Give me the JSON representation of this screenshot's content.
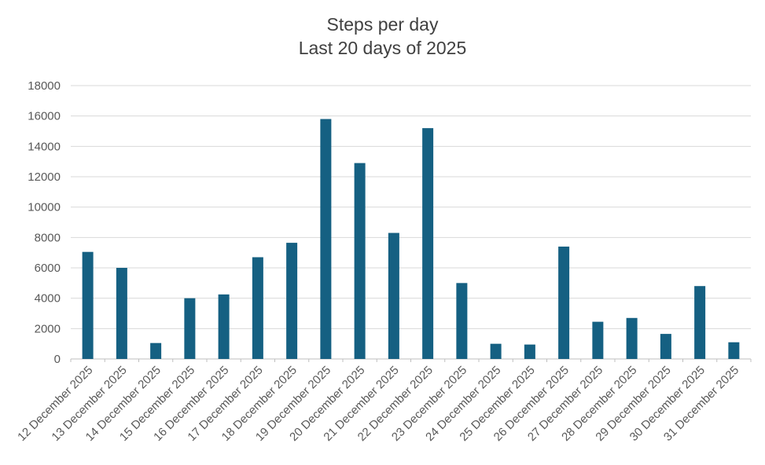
{
  "chart_data": {
    "type": "bar",
    "title": "Steps per day",
    "subtitle": "Last 20 days of 2025",
    "categories": [
      "12 December 2025",
      "13 December 2025",
      "14 December 2025",
      "15 December 2025",
      "16 December 2025",
      "17 December 2025",
      "18 December 2025",
      "19 December 2025",
      "20 December 2025",
      "21 December 2025",
      "22 December 2025",
      "23 December 2025",
      "24 December 2025",
      "25 December 2025",
      "26 December 2025",
      "27 December 2025",
      "28 December 2025",
      "29 December 2025",
      "30 December 2025",
      "31 December 2025"
    ],
    "values": [
      7050,
      6000,
      1050,
      4000,
      4250,
      6700,
      7650,
      15800,
      12900,
      8300,
      15200,
      5000,
      1000,
      950,
      7400,
      2450,
      2700,
      1650,
      4800,
      1100
    ],
    "xlabel": "",
    "ylabel": "",
    "ylim": [
      0,
      18000
    ],
    "ytick_step": 2000,
    "grid": true,
    "legend": false,
    "x_label_rotation_deg": -45,
    "colors": {
      "bar_fill": "#156082",
      "gridline": "#d9d9d9",
      "axis_line": "#bfbfbf",
      "tick_label": "#595959",
      "title": "#404040",
      "background": "#ffffff"
    }
  }
}
